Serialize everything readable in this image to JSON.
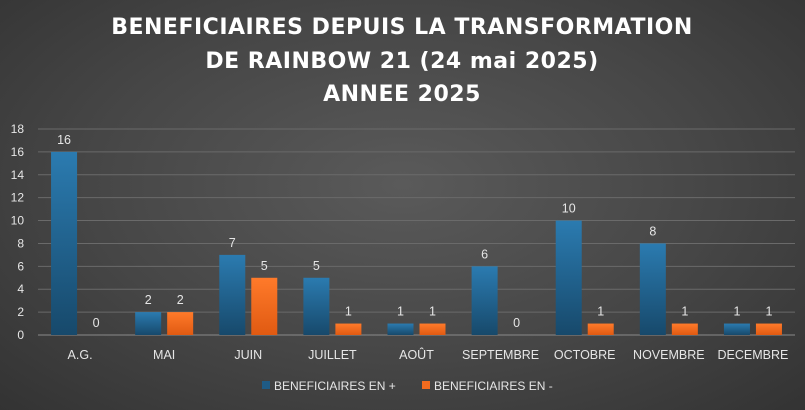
{
  "chart_data": {
    "type": "bar",
    "title_lines": [
      "BENEFICIAIRES DEPUIS LA TRANSFORMATION",
      "DE RAINBOW 21 (24 mai 2025)",
      "ANNEE 2025"
    ],
    "categories": [
      "A.G.",
      "MAI",
      "JUIN",
      "JUILLET",
      "AOÛT",
      "SEPTEMBRE",
      "OCTOBRE",
      "NOVEMBRE",
      "DECEMBRE"
    ],
    "series": [
      {
        "name": "BENEFICIAIRES EN +",
        "color": "#1f5b85",
        "values": [
          16,
          2,
          7,
          5,
          1,
          6,
          10,
          8,
          1
        ]
      },
      {
        "name": "BENEFICIAIRES EN -",
        "color": "#f26b1f",
        "values": [
          0,
          2,
          5,
          1,
          1,
          0,
          1,
          1,
          1
        ]
      }
    ],
    "ylim": [
      0,
      18
    ],
    "yticks": [
      0,
      2,
      4,
      6,
      8,
      10,
      12,
      14,
      16,
      18
    ],
    "grid": true,
    "legend_position": "bottom",
    "xlabel": "",
    "ylabel": ""
  }
}
